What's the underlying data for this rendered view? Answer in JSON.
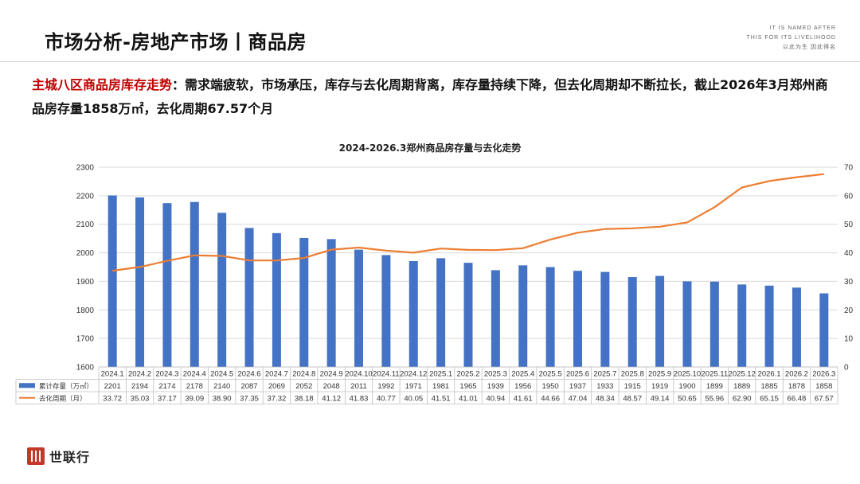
{
  "header": {
    "title": "市场分析-房地产市场丨商品房",
    "tagline": [
      "IT IS NAMED AFTER",
      "THIS FOR ITS LIVELIHOOD",
      "以此为生 因此得名"
    ]
  },
  "headline": {
    "highlight": "主城八区商品房库存走势",
    "text": "：需求端疲软，市场承压，库存与去化周期背离，库存量持续下降，但去化周期却不断拉长，截止2026年3月郑州商品房存量1858万㎡，去化周期67.57个月"
  },
  "colors": {
    "bar": "#4472c4",
    "line": "#ed7d31",
    "accent": "#c00000",
    "logo": "#c0392b"
  },
  "chart_data": {
    "type": "bar",
    "title": "2024-2026.3郑州商品房存量与去化走势",
    "categories": [
      "2024.1",
      "2024.2",
      "2024.3",
      "2024.4",
      "2024.5",
      "2024.6",
      "2024.7",
      "2024.8",
      "2024.9",
      "2024.10",
      "2024.11",
      "2024.12",
      "2025.1",
      "2025.2",
      "2025.3",
      "2025.4",
      "2025.5",
      "2025.6",
      "2025.7",
      "2025.8",
      "2025.9",
      "2025.10",
      "2025.11",
      "2025.12",
      "2026.1",
      "2026.2",
      "2026.3"
    ],
    "series": [
      {
        "name": "累计存量（万㎡）",
        "type": "bar",
        "axis": "left",
        "values": [
          2201,
          2194,
          2174,
          2178,
          2140,
          2087,
          2069,
          2052,
          2048,
          2011,
          1992,
          1971,
          1981,
          1965,
          1939,
          1956,
          1950,
          1937,
          1933,
          1915,
          1919,
          1900,
          1899,
          1889,
          1885,
          1878,
          1858
        ]
      },
      {
        "name": "去化周期（月）",
        "type": "line",
        "axis": "right",
        "values": [
          33.72,
          35.03,
          37.17,
          39.09,
          38.9,
          37.35,
          37.32,
          38.18,
          41.12,
          41.83,
          40.77,
          40.05,
          41.51,
          41.01,
          40.94,
          41.61,
          44.66,
          47.04,
          48.34,
          48.57,
          49.14,
          50.65,
          55.96,
          62.9,
          65.15,
          66.48,
          67.57
        ]
      }
    ],
    "left_ticks": [
      "1600",
      "1700",
      "1800",
      "1900",
      "2000",
      "2100",
      "2200",
      "2300"
    ],
    "right_ticks": [
      "0",
      "10",
      "20",
      "30",
      "40",
      "50",
      "60",
      "70"
    ],
    "ylim": [
      1600,
      2300
    ],
    "ylim_right": [
      0,
      70
    ],
    "grid": true,
    "data_table": true
  },
  "footer": {
    "logo_text": "世联行"
  }
}
